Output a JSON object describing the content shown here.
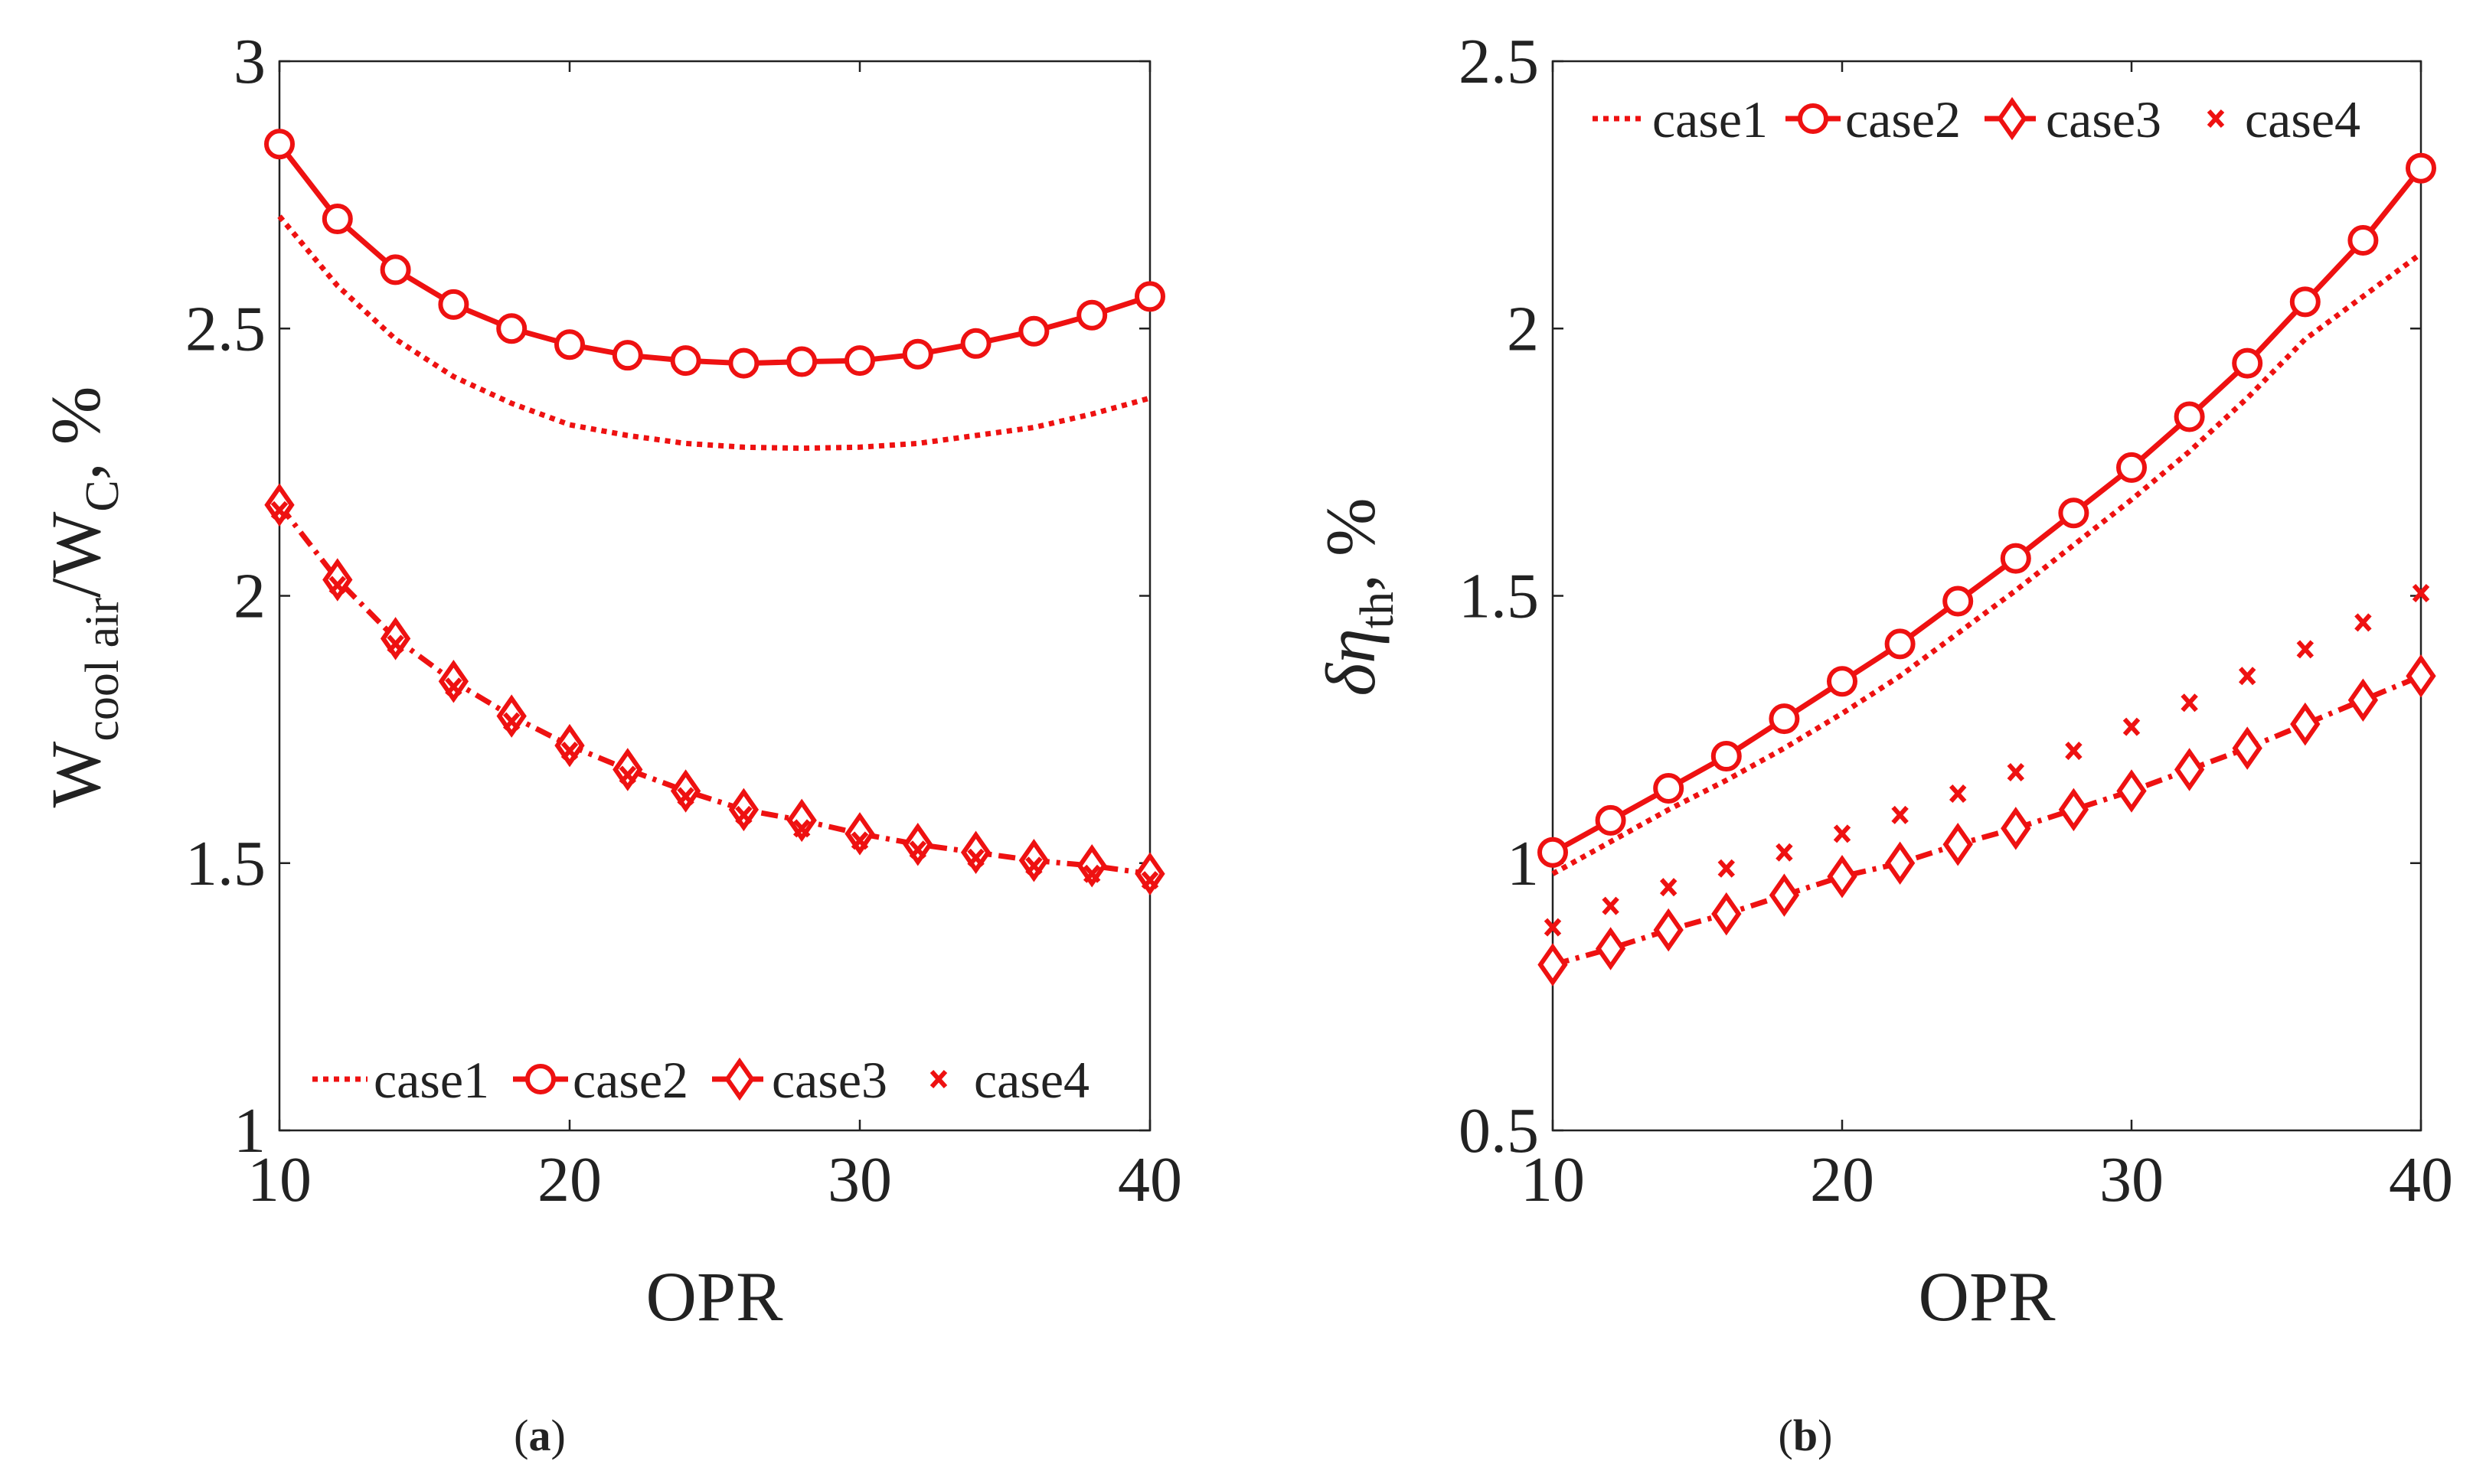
{
  "colors": {
    "series": "#ee1111",
    "axis": "#222222"
  },
  "chart_data": [
    {
      "type": "line",
      "panel": "a",
      "caption": {
        "open": "(",
        "letter": "a",
        "close": ")"
      },
      "xlabel": "OPR",
      "ylabel": {
        "main": "W",
        "sub1": "cool air",
        "mid": "/W",
        "sub2": "C",
        "tail": ", %"
      },
      "xlim": [
        10,
        40
      ],
      "ylim": [
        1,
        3
      ],
      "xticks": [
        "10",
        "20",
        "30",
        "40"
      ],
      "xtick_values": [
        10,
        20,
        30,
        40
      ],
      "yticks": [
        "1",
        "1.5",
        "2",
        "2.5",
        "3"
      ],
      "ytick_values": [
        1,
        1.5,
        2,
        2.5,
        3
      ],
      "legend_position": "bottom",
      "x": [
        10,
        12,
        14,
        16,
        18,
        20,
        22,
        24,
        26,
        28,
        30,
        32,
        34,
        36,
        38,
        40
      ],
      "series": [
        {
          "name": "case1",
          "style": "dotted",
          "values": [
            2.71,
            2.58,
            2.48,
            2.41,
            2.36,
            2.32,
            2.3,
            2.285,
            2.278,
            2.276,
            2.278,
            2.285,
            2.3,
            2.315,
            2.34,
            2.37
          ]
        },
        {
          "name": "case2",
          "style": "solid-circle",
          "values": [
            2.845,
            2.705,
            2.61,
            2.545,
            2.5,
            2.47,
            2.45,
            2.44,
            2.435,
            2.438,
            2.44,
            2.452,
            2.472,
            2.495,
            2.525,
            2.56
          ]
        },
        {
          "name": "case3",
          "style": "dashdot-diamond",
          "values": [
            2.17,
            2.03,
            1.92,
            1.84,
            1.775,
            1.72,
            1.675,
            1.635,
            1.6,
            1.58,
            1.555,
            1.535,
            1.52,
            1.505,
            1.495,
            1.48
          ]
        },
        {
          "name": "case4",
          "style": "cross",
          "values": [
            2.16,
            2.02,
            1.91,
            1.83,
            1.765,
            1.71,
            1.665,
            1.625,
            1.59,
            1.565,
            1.542,
            1.525,
            1.51,
            1.495,
            1.48,
            1.468
          ]
        }
      ]
    },
    {
      "type": "line",
      "panel": "b",
      "caption": {
        "open": "(",
        "letter": "b",
        "close": ")"
      },
      "xlabel": "OPR",
      "ylabel": {
        "main": "δη",
        "sub1": "th",
        "tail": ", %"
      },
      "xlim": [
        10,
        40
      ],
      "ylim": [
        0.5,
        2.5
      ],
      "xticks": [
        "10",
        "20",
        "30",
        "40"
      ],
      "xtick_values": [
        10,
        20,
        30,
        40
      ],
      "yticks": [
        "0.5",
        "1",
        "1.5",
        "2",
        "2.5"
      ],
      "ytick_values": [
        0.5,
        1,
        1.5,
        2,
        2.5
      ],
      "legend_position": "top",
      "x": [
        10,
        12,
        14,
        16,
        18,
        20,
        22,
        24,
        26,
        28,
        30,
        32,
        34,
        36,
        38,
        40
      ],
      "series": [
        {
          "name": "case1",
          "style": "dotted",
          "values": [
            0.98,
            1.04,
            1.1,
            1.155,
            1.215,
            1.28,
            1.35,
            1.43,
            1.51,
            1.595,
            1.68,
            1.77,
            1.87,
            1.98,
            2.06,
            2.14
          ]
        },
        {
          "name": "case2",
          "style": "solid-circle",
          "values": [
            1.02,
            1.08,
            1.14,
            1.2,
            1.27,
            1.34,
            1.41,
            1.49,
            1.57,
            1.655,
            1.74,
            1.835,
            1.935,
            2.05,
            2.165,
            2.3
          ]
        },
        {
          "name": "case3",
          "style": "dashdot-diamond",
          "values": [
            0.81,
            0.84,
            0.875,
            0.905,
            0.94,
            0.975,
            1.0,
            1.035,
            1.065,
            1.1,
            1.135,
            1.175,
            1.215,
            1.26,
            1.305,
            1.35
          ]
        },
        {
          "name": "case4",
          "style": "cross",
          "values": [
            0.88,
            0.92,
            0.955,
            0.99,
            1.02,
            1.055,
            1.09,
            1.13,
            1.17,
            1.21,
            1.255,
            1.3,
            1.35,
            1.4,
            1.45,
            1.505
          ]
        }
      ]
    }
  ]
}
